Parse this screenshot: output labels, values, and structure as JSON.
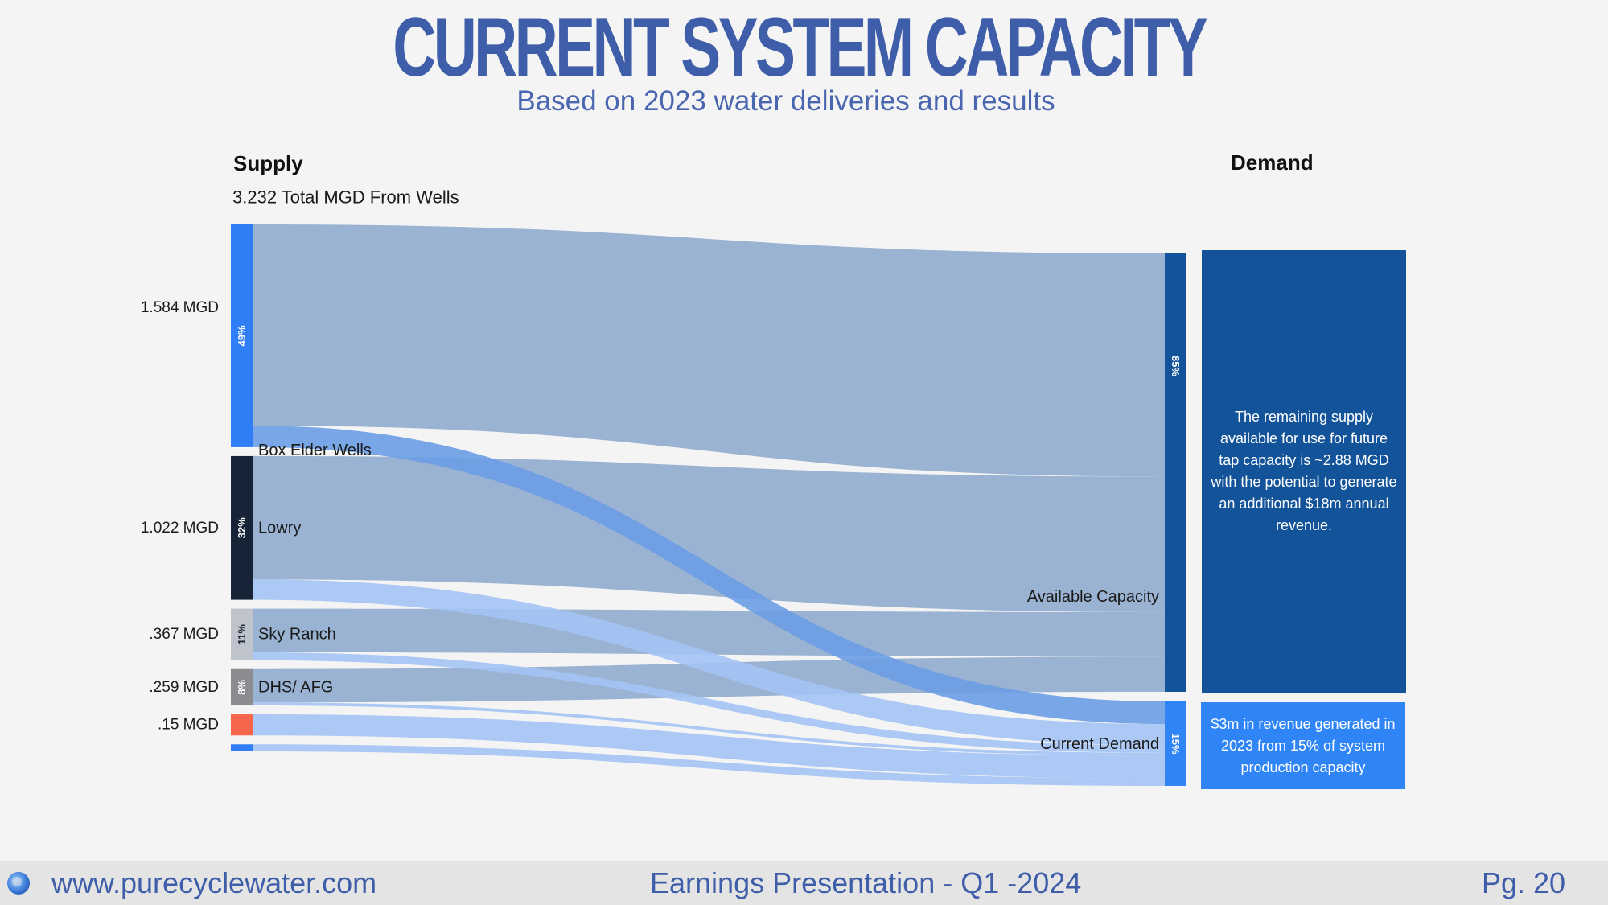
{
  "header": {
    "title": "CURRENT SYSTEM CAPACITY",
    "subtitle": "Based on 2023 water deliveries and results"
  },
  "chart_data": {
    "type": "sankey",
    "supply_heading": "Supply",
    "supply_total": "3.232 Total MGD From Wells",
    "demand_heading": "Demand",
    "sources": [
      {
        "id": "box_elder",
        "label": "Box Elder Wells",
        "value": 1.584,
        "value_label": "1.584 MGD",
        "pct_label": "49%",
        "color": "#2f7ef5"
      },
      {
        "id": "lowry",
        "label": "Lowry",
        "value": 1.022,
        "value_label": "1.022 MGD",
        "pct_label": "32%",
        "color": "#172336"
      },
      {
        "id": "sky_ranch",
        "label": "Sky Ranch",
        "value": 0.367,
        "value_label": ".367 MGD",
        "pct_label": "11%",
        "color": "#bfc3cc"
      },
      {
        "id": "dhs_afg",
        "label": "DHS/ AFG",
        "value": 0.259,
        "value_label": ".259 MGD",
        "pct_label": "8%",
        "color": "#8a8c90"
      },
      {
        "id": "other_1",
        "label": "",
        "value": 0.15,
        "value_label": ".15 MGD",
        "pct_label": "",
        "color": "#f7654a"
      },
      {
        "id": "other_2",
        "label": "",
        "value": 0.05,
        "value_label": "",
        "pct_label": "",
        "color": "#2f7ef5"
      }
    ],
    "targets": [
      {
        "id": "available",
        "label": "Available Capacity",
        "pct_label": "85%",
        "color": "#13539a"
      },
      {
        "id": "current",
        "label": "Current Demand",
        "pct_label": "15%",
        "color": "#2f85f5"
      }
    ],
    "flows": [
      {
        "source": "box_elder",
        "target": "available",
        "value": 1.4
      },
      {
        "source": "box_elder",
        "target": "current",
        "value": 0.15
      },
      {
        "source": "lowry",
        "target": "available",
        "value": 0.85
      },
      {
        "source": "lowry",
        "target": "current",
        "value": 0.14
      },
      {
        "source": "sky_ranch",
        "target": "available",
        "value": 0.28
      },
      {
        "source": "sky_ranch",
        "target": "current",
        "value": 0.05
      },
      {
        "source": "dhs_afg",
        "target": "available",
        "value": 0.22
      },
      {
        "source": "dhs_afg",
        "target": "current",
        "value": 0.02
      },
      {
        "source": "other_1",
        "target": "current",
        "value": 0.15
      },
      {
        "source": "other_2",
        "target": "current",
        "value": 0.05
      }
    ],
    "flow_colors": {
      "available": "#9ab3d2",
      "current": "#a5c3f3",
      "current_highlight": "#6d9ee4"
    }
  },
  "demand_notes": {
    "available": "The remaining supply available for use for future tap capacity is ~2.88 MGD with the potential to generate an additional $18m annual revenue.",
    "current": "$3m in revenue generated in 2023 from 15% of system production capacity"
  },
  "footer": {
    "website": "www.purecyclewater.com",
    "presentation": "Earnings Presentation - Q1 -2024",
    "page": "Pg. 20"
  }
}
